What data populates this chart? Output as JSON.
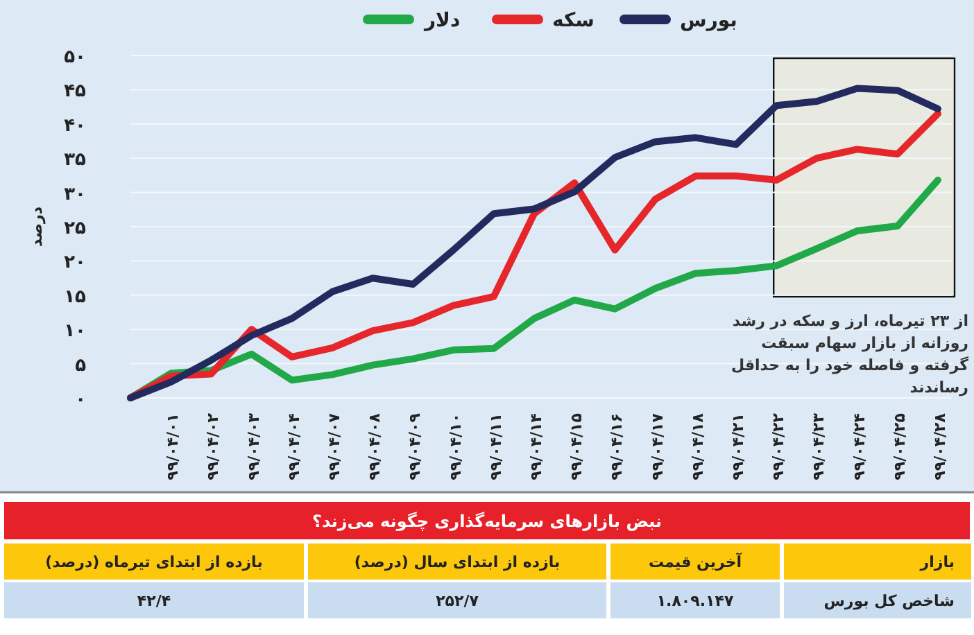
{
  "chart_data": [
    {
      "type": "line",
      "ylabel": "درصد",
      "categories": [
        null,
        "۹۹/۰۴/۰۱",
        "۹۹/۰۴/۰۲",
        "۹۹/۰۴/۰۳",
        "۹۹/۰۴/۰۴",
        "۹۹/۰۴/۰۷",
        "۹۹/۰۴/۰۸",
        "۹۹/۰۴/۰۹",
        "۹۹/۰۴/۱۰",
        "۹۹/۰۴/۱۱",
        "۹۹/۰۴/۱۴",
        "۹۹/۰۴/۱۵",
        "۹۹/۰۴/۱۶",
        "۹۹/۰۴/۱۷",
        "۹۹/۰۴/۱۸",
        "۹۹/۰۴/۲۱",
        "۹۹/۰۴/۲۲",
        "۹۹/۰۴/۲۳",
        "۹۹/۰۴/۲۴",
        "۹۹/۰۴/۲۵",
        "۹۹/۰۴/۲۸"
      ],
      "series": [
        {
          "name": "بورس",
          "color": "#232a5e",
          "values": [
            0,
            2.3,
            5.5,
            9.1,
            11.6,
            15.5,
            17.5,
            16.6,
            21.6,
            26.9,
            27.6,
            30.1,
            35.1,
            37.4,
            38,
            37,
            42.7,
            43.3,
            45.2,
            44.9,
            42.2
          ]
        },
        {
          "name": "سکه",
          "color": "#e5262b",
          "values": [
            0,
            3.2,
            3.5,
            10,
            6,
            7.3,
            9.8,
            11,
            13.5,
            14.8,
            26.9,
            31.4,
            21.6,
            29,
            32.4,
            32.4,
            31.8,
            35,
            36.3,
            35.6,
            41.5
          ]
        },
        {
          "name": "دلار",
          "color": "#21a849",
          "values": [
            0,
            3.6,
            4,
            6.4,
            2.6,
            3.4,
            4.8,
            5.7,
            7,
            7.2,
            11.6,
            14.3,
            13,
            16,
            18.2,
            18.6,
            19.3,
            21.8,
            24.4,
            25.1,
            31.8
          ]
        }
      ],
      "ylim": [
        0,
        50
      ],
      "yticks": [
        {
          "value": 0,
          "label": "۰"
        },
        {
          "value": 5,
          "label": "۵"
        },
        {
          "value": 10,
          "label": "۱۰"
        },
        {
          "value": 15,
          "label": "۱۵"
        },
        {
          "value": 20,
          "label": "۲۰"
        },
        {
          "value": 25,
          "label": "۲۵"
        },
        {
          "value": 30,
          "label": "۳۰"
        },
        {
          "value": 35,
          "label": "۳۵"
        },
        {
          "value": 40,
          "label": "۴۰"
        },
        {
          "value": 45,
          "label": "۴۵"
        },
        {
          "value": 50,
          "label": "۵۰"
        }
      ],
      "bands": [
        {
          "axis": "x",
          "from": "۹۹/۰۴/۲۲",
          "to": "۹۹/۰۴/۲۸",
          "color": "#e8eae2"
        }
      ],
      "annotations": [
        "از ۲۳ تیرماه، ارز و سکه در رشد روزانه از بازار سهام سبقت گرفته و فاصله خود را به حداقل رساندند"
      ],
      "grid": "y",
      "legend": "top",
      "marker": "none",
      "line_style": "solid"
    },
    {
      "type": "other",
      "title": "نبض بازارهای سرمایه‌گذاری چگونه می‌زند؟",
      "annotations": [
        "بازار",
        "آخرین قیمت",
        "بازده از ابتدای سال (درصد)",
        "بازده از ابتدای تیرماه (درصد)",
        "شاخص کل بورس",
        "۱.۸۰۹.۱۴۷",
        "۲۵۲/۷",
        "۴۲/۴"
      ]
    }
  ]
}
